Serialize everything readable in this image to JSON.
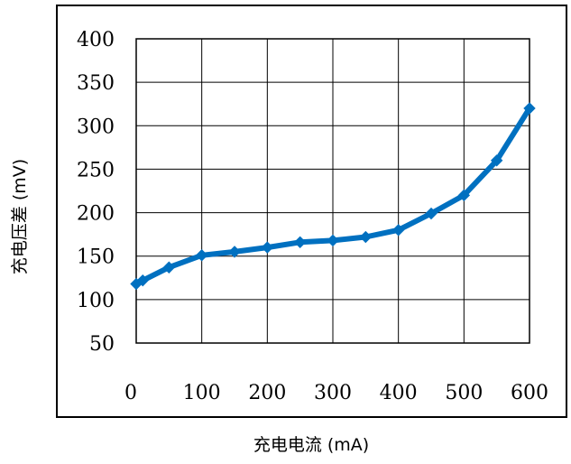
{
  "chart_data": {
    "type": "line",
    "xlabel": "充电电流 (mA)",
    "ylabel": "充电压差 (mV)",
    "xlim": [
      0,
      600
    ],
    "ylim": [
      50,
      400
    ],
    "x_ticks": [
      "0",
      "100",
      "200",
      "300",
      "400",
      "500",
      "600"
    ],
    "y_ticks": [
      "50",
      "100",
      "150",
      "200",
      "250",
      "300",
      "350",
      "400"
    ],
    "grid": true,
    "legend": "none",
    "series": [
      {
        "color": "#0070c0",
        "x": [
          0,
          10,
          50,
          100,
          150,
          200,
          250,
          300,
          350,
          400,
          450,
          500,
          550,
          600
        ],
        "y": [
          118,
          122,
          137,
          151,
          155,
          160,
          166,
          168,
          172,
          180,
          199,
          220,
          260,
          320
        ]
      }
    ]
  }
}
